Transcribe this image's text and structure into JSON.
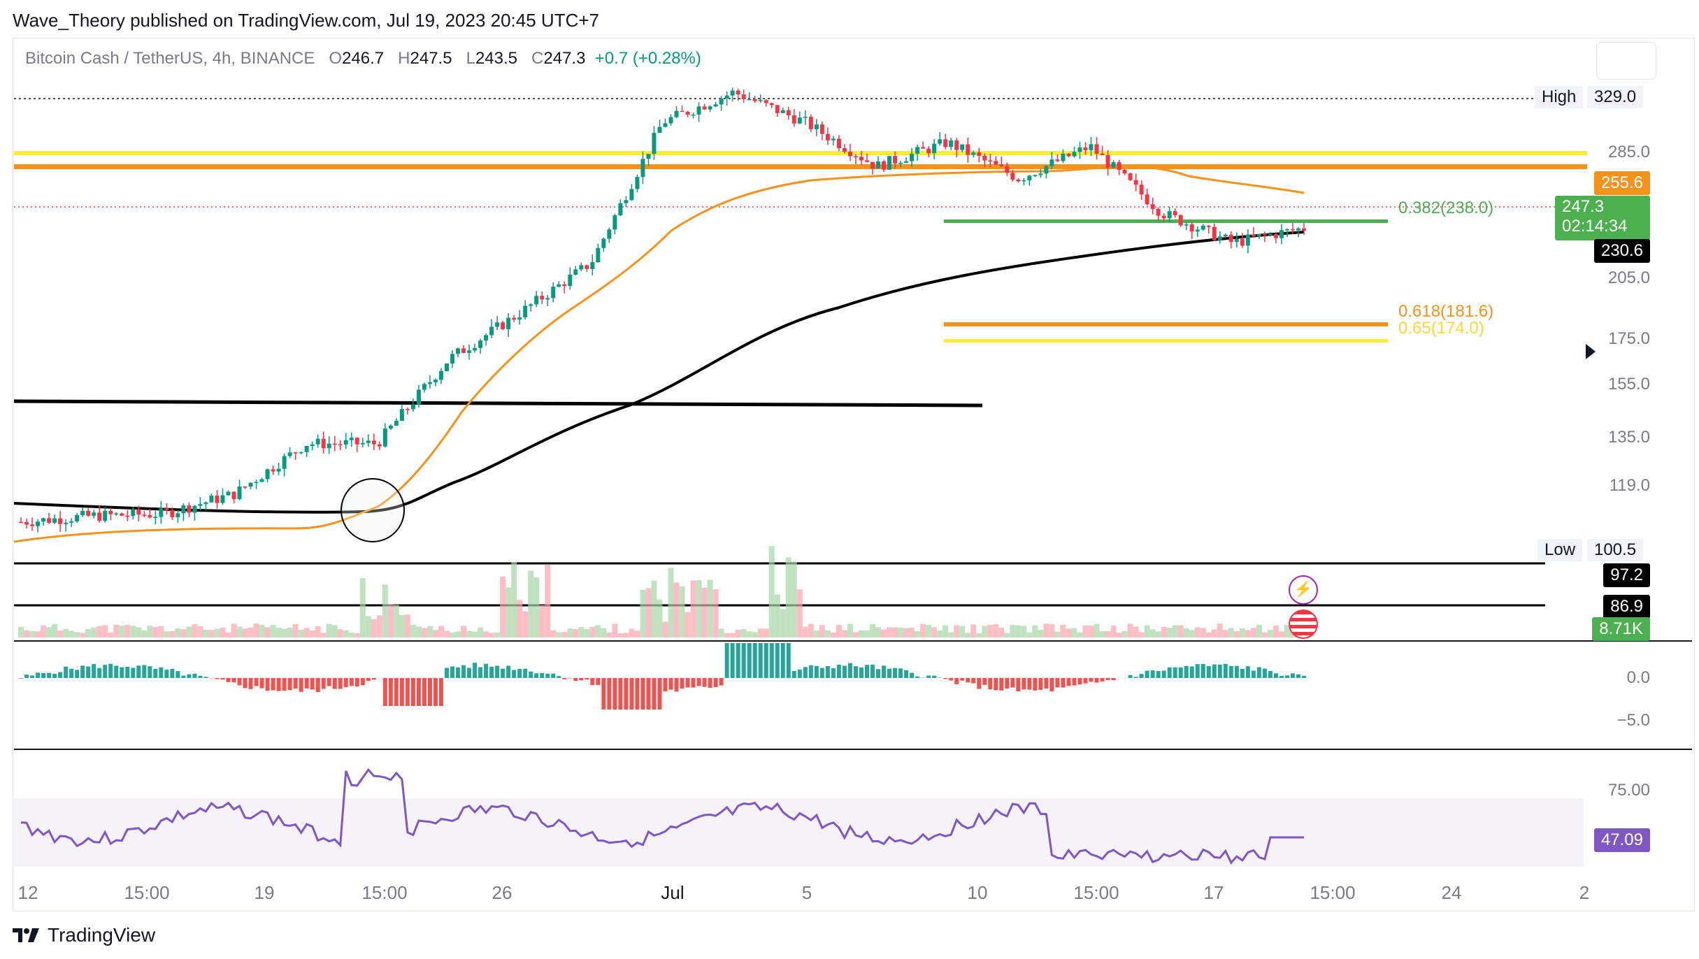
{
  "header": {
    "publisher": "Wave_Theory published on TradingView.com, Jul 19, 2023 20:45 UTC+7"
  },
  "symbol": {
    "name": "Bitcoin Cash / TetherUS, 4h, BINANCE",
    "o_label": "O",
    "o": "246.7",
    "h_label": "H",
    "h": "247.5",
    "l_label": "L",
    "l": "243.5",
    "c_label": "C",
    "c": "247.3",
    "change": "+0.7 (+0.28%)"
  },
  "price_axis": {
    "ticks": [
      "285.0",
      "205.0",
      "175.0",
      "155.0",
      "135.0",
      "119.0"
    ],
    "high_label": "High",
    "high_value": "329.0",
    "low_label": "Low",
    "low_value": "100.5",
    "ma_orange_value": "255.6",
    "last_price": "247.3",
    "countdown": "02:14:34",
    "ma_black_value": "230.6",
    "vol_axis_1": "97.2",
    "vol_axis_2": "86.9",
    "volume_value": "8.71K"
  },
  "fib": {
    "f382": "0.382(238.0)",
    "f618": "0.618(181.6)",
    "f65": "0.65(174.0)"
  },
  "macd_axis": [
    "0.0",
    "−5.0"
  ],
  "rsi_axis": {
    "level": "75.00",
    "value": "47.09"
  },
  "x_axis": [
    "12",
    "15:00",
    "19",
    "15:00",
    "26",
    "Jul",
    "5",
    "10",
    "15:00",
    "17",
    "15:00",
    "24",
    "2"
  ],
  "footer": {
    "brand": "TradingView"
  },
  "chart_data": {
    "type": "candlestick",
    "title": "Bitcoin Cash / TetherUS, 4h, BINANCE",
    "colors": {
      "up": "#089981",
      "down": "#f23645",
      "ema_orange": "#f7931a",
      "ma_black": "#000000",
      "fib_yellow": "#ffeb3b",
      "fib_green": "#4caf50",
      "rsi": "#7e57c2"
    },
    "approx_close_path": [
      {
        "x": "Jun 12",
        "y": 101
      },
      {
        "x": "Jun 15",
        "y": 104
      },
      {
        "x": "Jun 19",
        "y": 105
      },
      {
        "x": "Jun 21",
        "y": 115
      },
      {
        "x": "Jun 22",
        "y": 140
      },
      {
        "x": "Jun 23",
        "y": 140
      },
      {
        "x": "Jun 24",
        "y": 182
      },
      {
        "x": "Jun 26",
        "y": 205
      },
      {
        "x": "Jun 28",
        "y": 230
      },
      {
        "x": "Jun 30",
        "y": 300
      },
      {
        "x": "Jul 1",
        "y": 315
      },
      {
        "x": "Jul 3",
        "y": 300
      },
      {
        "x": "Jul 5",
        "y": 278
      },
      {
        "x": "Jul 6",
        "y": 290
      },
      {
        "x": "Jul 10",
        "y": 272
      },
      {
        "x": "Jul 13",
        "y": 288
      },
      {
        "x": "Jul 15",
        "y": 255
      },
      {
        "x": "Jul 17",
        "y": 240
      },
      {
        "x": "Jul 19",
        "y": 247.3
      }
    ],
    "levels": {
      "high": 329.0,
      "low": 100.5,
      "resistance_yellow": 285.0,
      "resistance_orange": 278.0,
      "fib_0382": 238.0,
      "fib_0618": 181.6,
      "fib_065": 174.0,
      "ema_50": 255.6,
      "ma_200": 230.6,
      "horizontal_black": 150.0
    },
    "volume_last": "8.71K",
    "rsi_last": 47.09
  }
}
